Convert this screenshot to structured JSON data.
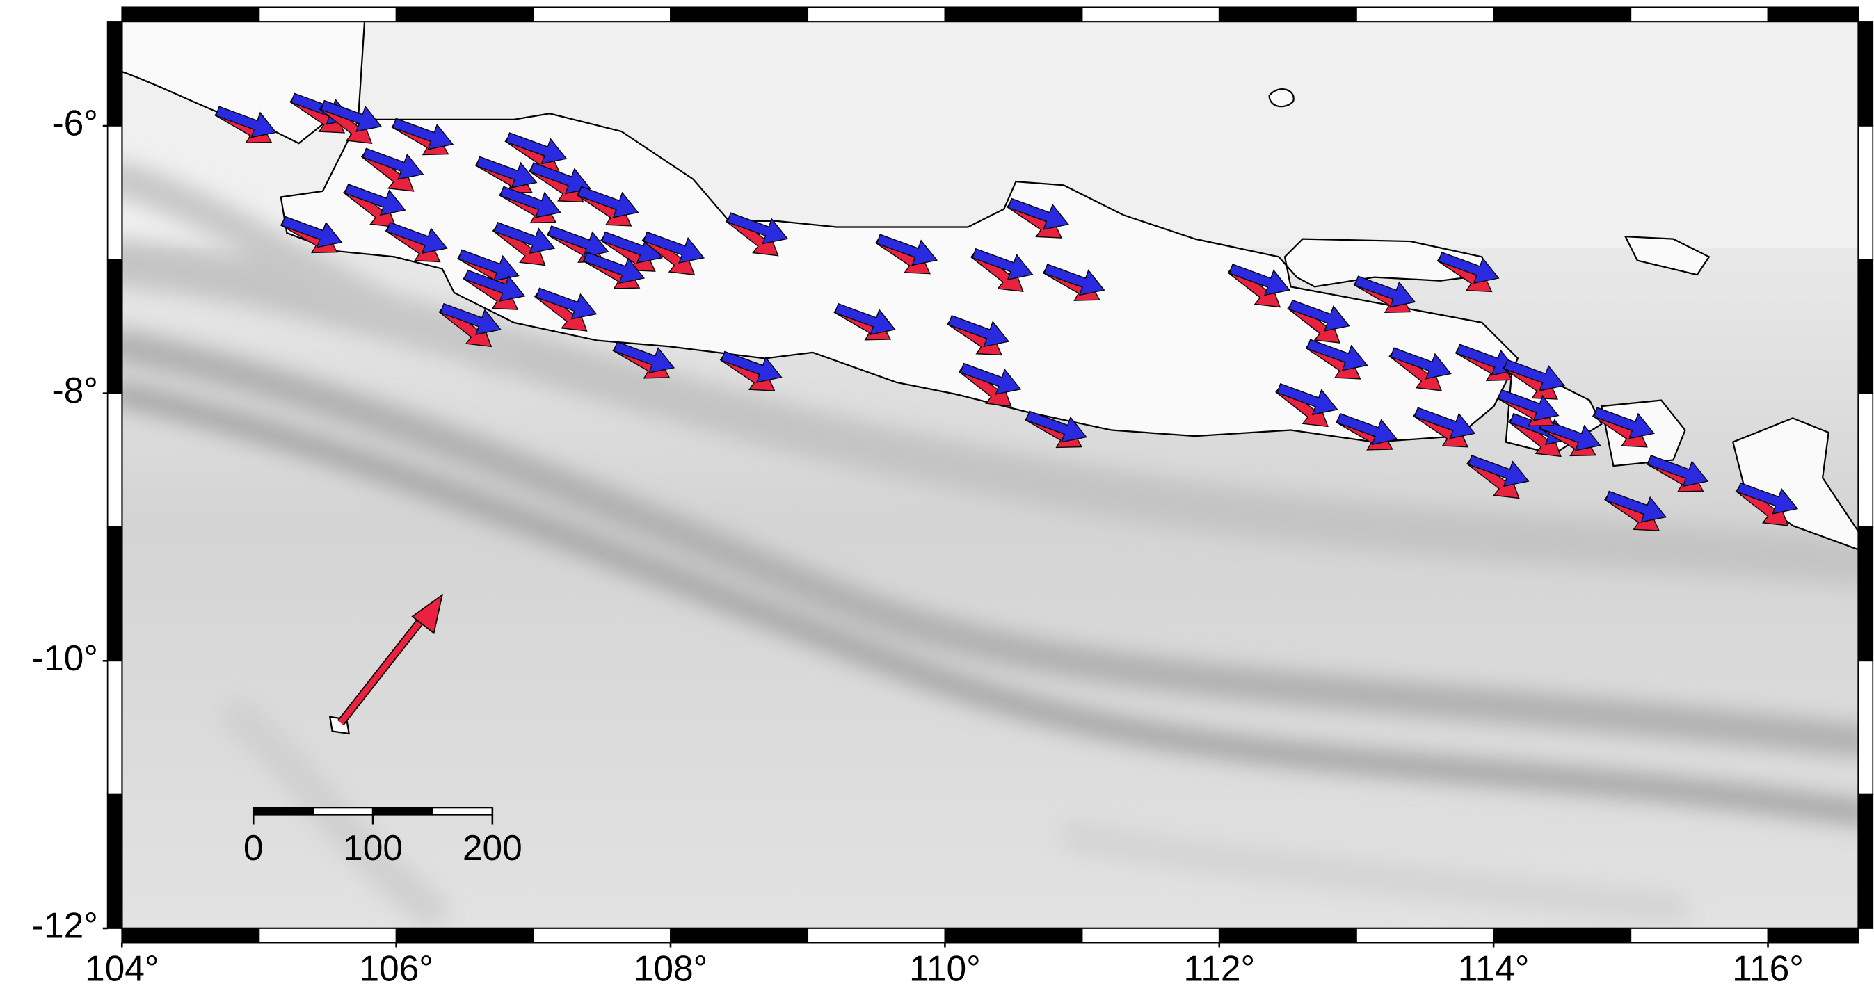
{
  "map": {
    "xlim": [
      104,
      116.66
    ],
    "ylim": [
      -12,
      -5.22
    ],
    "xticks": [
      {
        "value": 104,
        "label": "104°"
      },
      {
        "value": 106,
        "label": "106°"
      },
      {
        "value": 108,
        "label": "108°"
      },
      {
        "value": 110,
        "label": "110°"
      },
      {
        "value": 112,
        "label": "112°"
      },
      {
        "value": 114,
        "label": "114°"
      },
      {
        "value": 116,
        "label": "116°"
      }
    ],
    "yticks": [
      {
        "value": -6,
        "label": "-6°"
      },
      {
        "value": -8,
        "label": "-8°"
      },
      {
        "value": -10,
        "label": "-10°"
      },
      {
        "value": -12,
        "label": "-12°"
      }
    ],
    "scale_bar": {
      "range": [
        0,
        200
      ],
      "ticks": [
        0,
        100,
        200
      ]
    }
  }
}
